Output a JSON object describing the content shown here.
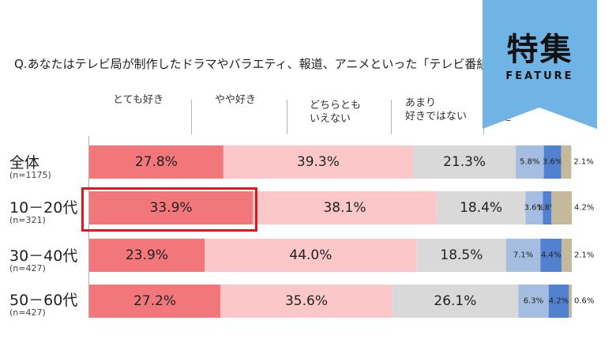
{
  "question": "Q.あなたはテレビ局が制作したドラマやバラエティ、報道、アニメといった「テレビ番組」",
  "badge": {
    "title": "特集",
    "subtitle": "FEATURE"
  },
  "header_labels": [
    "とても好き",
    "やや好き",
    "どちらとも\nいえない",
    "あまり\n好きではない",
    "好き"
  ],
  "chart_data": {
    "type": "bar",
    "orientation": "horizontal-stacked-100",
    "categories": [
      {
        "label": "全体",
        "n": "(n=1175)"
      },
      {
        "label": "10－20代",
        "n": "(n=321)"
      },
      {
        "label": "30－40代",
        "n": "(n=427)"
      },
      {
        "label": "50－60代",
        "n": "(n=427)"
      }
    ],
    "series": [
      {
        "name": "とても好き",
        "color": "#f2777a",
        "values": [
          27.8,
          33.9,
          23.9,
          27.2
        ]
      },
      {
        "name": "やや好き",
        "color": "#fcc7c8",
        "values": [
          39.3,
          38.1,
          44.0,
          35.6
        ]
      },
      {
        "name": "どちらともいえない",
        "color": "#d9d9d9",
        "values": [
          21.3,
          18.4,
          18.5,
          26.1
        ]
      },
      {
        "name": "あまり好きではない",
        "color": "#a5bde0",
        "values": [
          5.8,
          3.6,
          7.1,
          6.3
        ]
      },
      {
        "name": "",
        "color": "#5282cf",
        "values": [
          3.6,
          1.8,
          4.4,
          4.2
        ]
      },
      {
        "name": "",
        "color": "#c4b99a",
        "values": [
          2.1,
          4.2,
          2.1,
          0.6
        ]
      }
    ],
    "value_format": "%",
    "highlighted": {
      "category": "10－20代",
      "series": "とても好き"
    }
  }
}
